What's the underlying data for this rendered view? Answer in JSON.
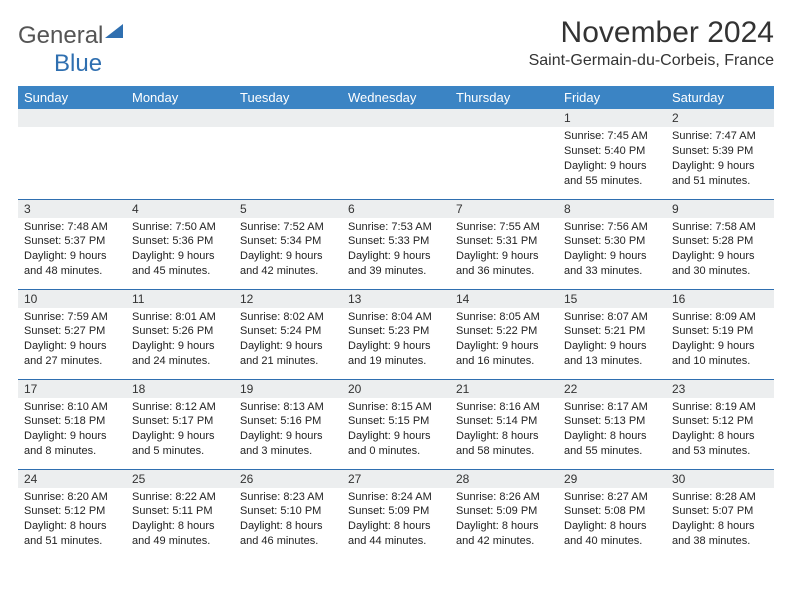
{
  "brand": {
    "word1": "General",
    "word2": "Blue"
  },
  "title": "November 2024",
  "location": "Saint-Germain-du-Corbeis, France",
  "colors": {
    "header_bg": "#3b84c4",
    "header_text": "#ffffff",
    "daynum_bg": "#eceeef",
    "rule": "#2f6fb0",
    "brand_accent": "#2f6fb0"
  },
  "day_names": [
    "Sunday",
    "Monday",
    "Tuesday",
    "Wednesday",
    "Thursday",
    "Friday",
    "Saturday"
  ],
  "weeks": [
    [
      null,
      null,
      null,
      null,
      null,
      {
        "n": "1",
        "sunrise": "7:45 AM",
        "sunset": "5:40 PM",
        "day_h": 9,
        "day_m": 55
      },
      {
        "n": "2",
        "sunrise": "7:47 AM",
        "sunset": "5:39 PM",
        "day_h": 9,
        "day_m": 51
      }
    ],
    [
      {
        "n": "3",
        "sunrise": "7:48 AM",
        "sunset": "5:37 PM",
        "day_h": 9,
        "day_m": 48
      },
      {
        "n": "4",
        "sunrise": "7:50 AM",
        "sunset": "5:36 PM",
        "day_h": 9,
        "day_m": 45
      },
      {
        "n": "5",
        "sunrise": "7:52 AM",
        "sunset": "5:34 PM",
        "day_h": 9,
        "day_m": 42
      },
      {
        "n": "6",
        "sunrise": "7:53 AM",
        "sunset": "5:33 PM",
        "day_h": 9,
        "day_m": 39
      },
      {
        "n": "7",
        "sunrise": "7:55 AM",
        "sunset": "5:31 PM",
        "day_h": 9,
        "day_m": 36
      },
      {
        "n": "8",
        "sunrise": "7:56 AM",
        "sunset": "5:30 PM",
        "day_h": 9,
        "day_m": 33
      },
      {
        "n": "9",
        "sunrise": "7:58 AM",
        "sunset": "5:28 PM",
        "day_h": 9,
        "day_m": 30
      }
    ],
    [
      {
        "n": "10",
        "sunrise": "7:59 AM",
        "sunset": "5:27 PM",
        "day_h": 9,
        "day_m": 27
      },
      {
        "n": "11",
        "sunrise": "8:01 AM",
        "sunset": "5:26 PM",
        "day_h": 9,
        "day_m": 24
      },
      {
        "n": "12",
        "sunrise": "8:02 AM",
        "sunset": "5:24 PM",
        "day_h": 9,
        "day_m": 21
      },
      {
        "n": "13",
        "sunrise": "8:04 AM",
        "sunset": "5:23 PM",
        "day_h": 9,
        "day_m": 19
      },
      {
        "n": "14",
        "sunrise": "8:05 AM",
        "sunset": "5:22 PM",
        "day_h": 9,
        "day_m": 16
      },
      {
        "n": "15",
        "sunrise": "8:07 AM",
        "sunset": "5:21 PM",
        "day_h": 9,
        "day_m": 13
      },
      {
        "n": "16",
        "sunrise": "8:09 AM",
        "sunset": "5:19 PM",
        "day_h": 9,
        "day_m": 10
      }
    ],
    [
      {
        "n": "17",
        "sunrise": "8:10 AM",
        "sunset": "5:18 PM",
        "day_h": 9,
        "day_m": 8
      },
      {
        "n": "18",
        "sunrise": "8:12 AM",
        "sunset": "5:17 PM",
        "day_h": 9,
        "day_m": 5
      },
      {
        "n": "19",
        "sunrise": "8:13 AM",
        "sunset": "5:16 PM",
        "day_h": 9,
        "day_m": 3
      },
      {
        "n": "20",
        "sunrise": "8:15 AM",
        "sunset": "5:15 PM",
        "day_h": 9,
        "day_m": 0
      },
      {
        "n": "21",
        "sunrise": "8:16 AM",
        "sunset": "5:14 PM",
        "day_h": 8,
        "day_m": 58
      },
      {
        "n": "22",
        "sunrise": "8:17 AM",
        "sunset": "5:13 PM",
        "day_h": 8,
        "day_m": 55
      },
      {
        "n": "23",
        "sunrise": "8:19 AM",
        "sunset": "5:12 PM",
        "day_h": 8,
        "day_m": 53
      }
    ],
    [
      {
        "n": "24",
        "sunrise": "8:20 AM",
        "sunset": "5:12 PM",
        "day_h": 8,
        "day_m": 51
      },
      {
        "n": "25",
        "sunrise": "8:22 AM",
        "sunset": "5:11 PM",
        "day_h": 8,
        "day_m": 49
      },
      {
        "n": "26",
        "sunrise": "8:23 AM",
        "sunset": "5:10 PM",
        "day_h": 8,
        "day_m": 46
      },
      {
        "n": "27",
        "sunrise": "8:24 AM",
        "sunset": "5:09 PM",
        "day_h": 8,
        "day_m": 44
      },
      {
        "n": "28",
        "sunrise": "8:26 AM",
        "sunset": "5:09 PM",
        "day_h": 8,
        "day_m": 42
      },
      {
        "n": "29",
        "sunrise": "8:27 AM",
        "sunset": "5:08 PM",
        "day_h": 8,
        "day_m": 40
      },
      {
        "n": "30",
        "sunrise": "8:28 AM",
        "sunset": "5:07 PM",
        "day_h": 8,
        "day_m": 38
      }
    ]
  ],
  "labels": {
    "sunrise": "Sunrise:",
    "sunset": "Sunset:",
    "daylight": "Daylight:",
    "hours": "hours",
    "and": "and",
    "minutes": "minutes."
  }
}
